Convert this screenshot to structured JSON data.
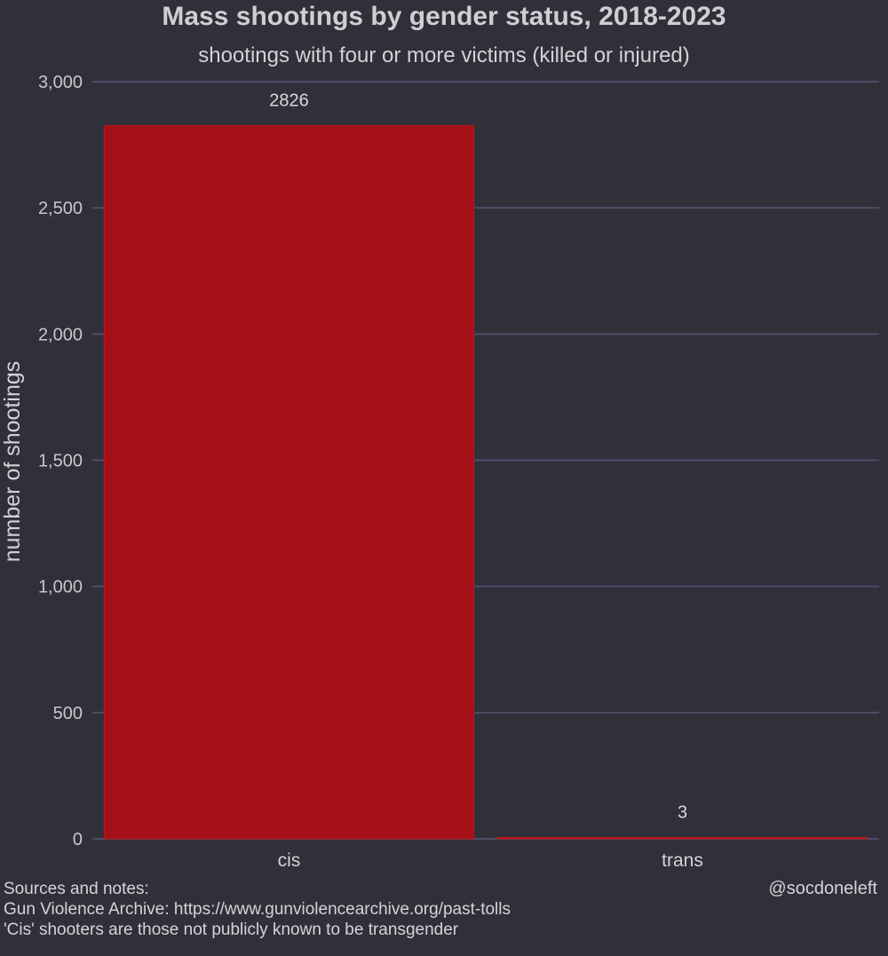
{
  "chart_data": {
    "type": "bar",
    "title": "Mass shootings by gender status, 2018-2023",
    "subtitle": "shootings with four or more victims (killed or injured)",
    "xlabel": "",
    "ylabel": "number of shootings",
    "categories": [
      "cis",
      "trans"
    ],
    "values": [
      2826,
      3
    ],
    "data_labels": [
      "2826",
      "3"
    ],
    "ylim": [
      0,
      3000
    ],
    "yticks": [
      0,
      500,
      1000,
      1500,
      2000,
      2500,
      3000
    ],
    "ytick_labels": [
      "0",
      "500",
      "1,000",
      "1,500",
      "2,000",
      "2,500",
      "3,000"
    ],
    "grid": "horizontal",
    "legend": "none",
    "colors": {
      "background": "#30303a",
      "bar": "#a31018",
      "bar_edge": "#c0161e",
      "grid": "#4d4d66",
      "text": "#d6d6da"
    }
  },
  "footer": {
    "notes": [
      "Sources and notes:",
      "Gun Violence Archive: https://www.gunviolencearchive.org/past-tolls",
      "'Cis' shooters are those not publicly known to be transgender"
    ],
    "credit": "@socdoneleft"
  }
}
